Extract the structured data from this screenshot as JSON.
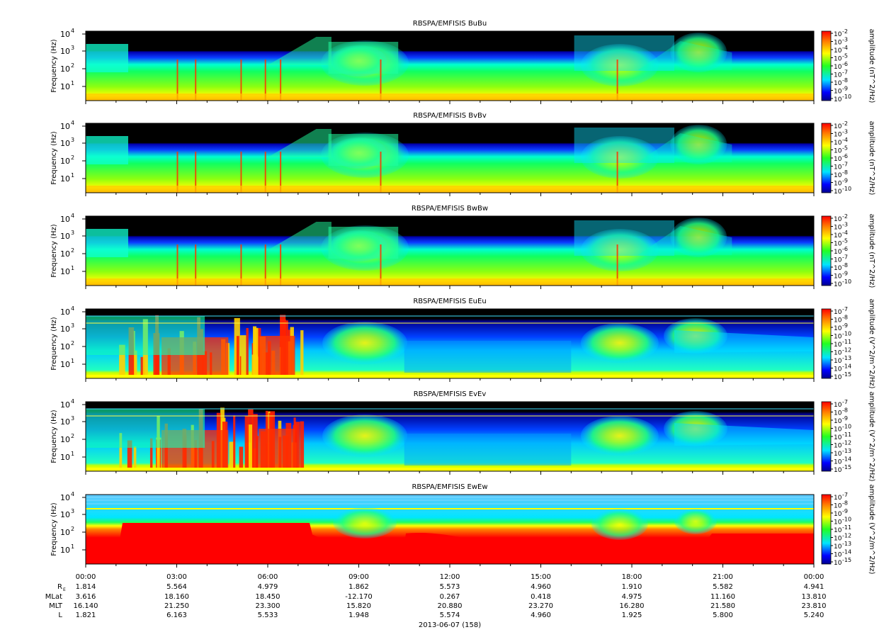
{
  "chart_data": {
    "type": "heatmap",
    "date_label": "2013-06-07 (158)",
    "x_ticks": [
      "00:00",
      "03:00",
      "06:00",
      "09:00",
      "12:00",
      "15:00",
      "18:00",
      "21:00",
      "00:00"
    ],
    "ephemeris": {
      "rows": [
        {
          "label": "R",
          "sub": "E",
          "values": [
            "1.814",
            "5.564",
            "4.979",
            "1.862",
            "5.573",
            "4.960",
            "1.910",
            "5.582",
            "4.941"
          ]
        },
        {
          "label": "MLat",
          "sub": "",
          "values": [
            "3.616",
            "18.160",
            "18.450",
            "-12.170",
            "0.267",
            "0.418",
            "4.975",
            "11.160",
            "13.810"
          ]
        },
        {
          "label": "MLT",
          "sub": "",
          "values": [
            "16.140",
            "21.250",
            "23.300",
            "15.820",
            "20.880",
            "23.270",
            "16.280",
            "21.580",
            "23.810"
          ]
        },
        {
          "label": "L",
          "sub": "",
          "values": [
            "1.821",
            "6.163",
            "5.533",
            "1.948",
            "5.574",
            "4.960",
            "1.925",
            "5.800",
            "5.240"
          ]
        }
      ]
    },
    "panels": [
      {
        "title": "RBSPA/EMFISIS  BuBu",
        "ylabel": "Frequency (Hz)",
        "y_ticks": [
          "10",
          "10",
          "10",
          "10"
        ],
        "y_exp": [
          "1",
          "2",
          "3",
          "4"
        ],
        "cbar_label": "amplitude (nT^2/Hz)",
        "cbar_exps": [
          "-2",
          "-3",
          "-4",
          "-5",
          "-6",
          "-7",
          "-8",
          "-9",
          "-10"
        ],
        "kind": "B"
      },
      {
        "title": "RBSPA/EMFISIS  BvBv",
        "ylabel": "Frequency (Hz)",
        "y_ticks": [
          "10",
          "10",
          "10",
          "10"
        ],
        "y_exp": [
          "1",
          "2",
          "3",
          "4"
        ],
        "cbar_label": "amplitude (nT^2/Hz)",
        "cbar_exps": [
          "-2",
          "-3",
          "-4",
          "-5",
          "-6",
          "-7",
          "-8",
          "-9",
          "-10"
        ],
        "kind": "B"
      },
      {
        "title": "RBSPA/EMFISIS  BwBw",
        "ylabel": "Frequency (Hz)",
        "y_ticks": [
          "10",
          "10",
          "10",
          "10"
        ],
        "y_exp": [
          "1",
          "2",
          "3",
          "4"
        ],
        "cbar_label": "amplitude (nT^2/Hz)",
        "cbar_exps": [
          "-2",
          "-3",
          "-4",
          "-5",
          "-6",
          "-7",
          "-8",
          "-9",
          "-10"
        ],
        "kind": "B"
      },
      {
        "title": "RBSPA/EMFISIS  EuEu",
        "ylabel": "Frequency (Hz)",
        "y_ticks": [
          "10",
          "10",
          "10",
          "10"
        ],
        "y_exp": [
          "1",
          "2",
          "3",
          "4"
        ],
        "cbar_label": "amplitude (V^2/m^2/Hz)",
        "cbar_exps": [
          "-7",
          "-8",
          "-9",
          "-10",
          "-11",
          "-12",
          "-13",
          "-14",
          "-15"
        ],
        "kind": "E"
      },
      {
        "title": "RBSPA/EMFISIS  EvEv",
        "ylabel": "Frequency (Hz)",
        "y_ticks": [
          "10",
          "10",
          "10",
          "10"
        ],
        "y_exp": [
          "1",
          "2",
          "3",
          "4"
        ],
        "cbar_label": "amplitude (V^2/m^2/Hz)",
        "cbar_exps": [
          "-7",
          "-8",
          "-9",
          "-10",
          "-11",
          "-12",
          "-13",
          "-14",
          "-15"
        ],
        "kind": "E"
      },
      {
        "title": "RBSPA/EMFISIS  EwEw",
        "ylabel": "Frequency (Hz)",
        "y_ticks": [
          "10",
          "10",
          "10",
          "10"
        ],
        "y_exp": [
          "1",
          "2",
          "3",
          "4"
        ],
        "cbar_label": "amplitude (V^2/m^2/Hz)",
        "cbar_exps": [
          "-7",
          "-8",
          "-9",
          "-10",
          "-11",
          "-12",
          "-13",
          "-14",
          "-15"
        ],
        "kind": "W"
      }
    ]
  }
}
